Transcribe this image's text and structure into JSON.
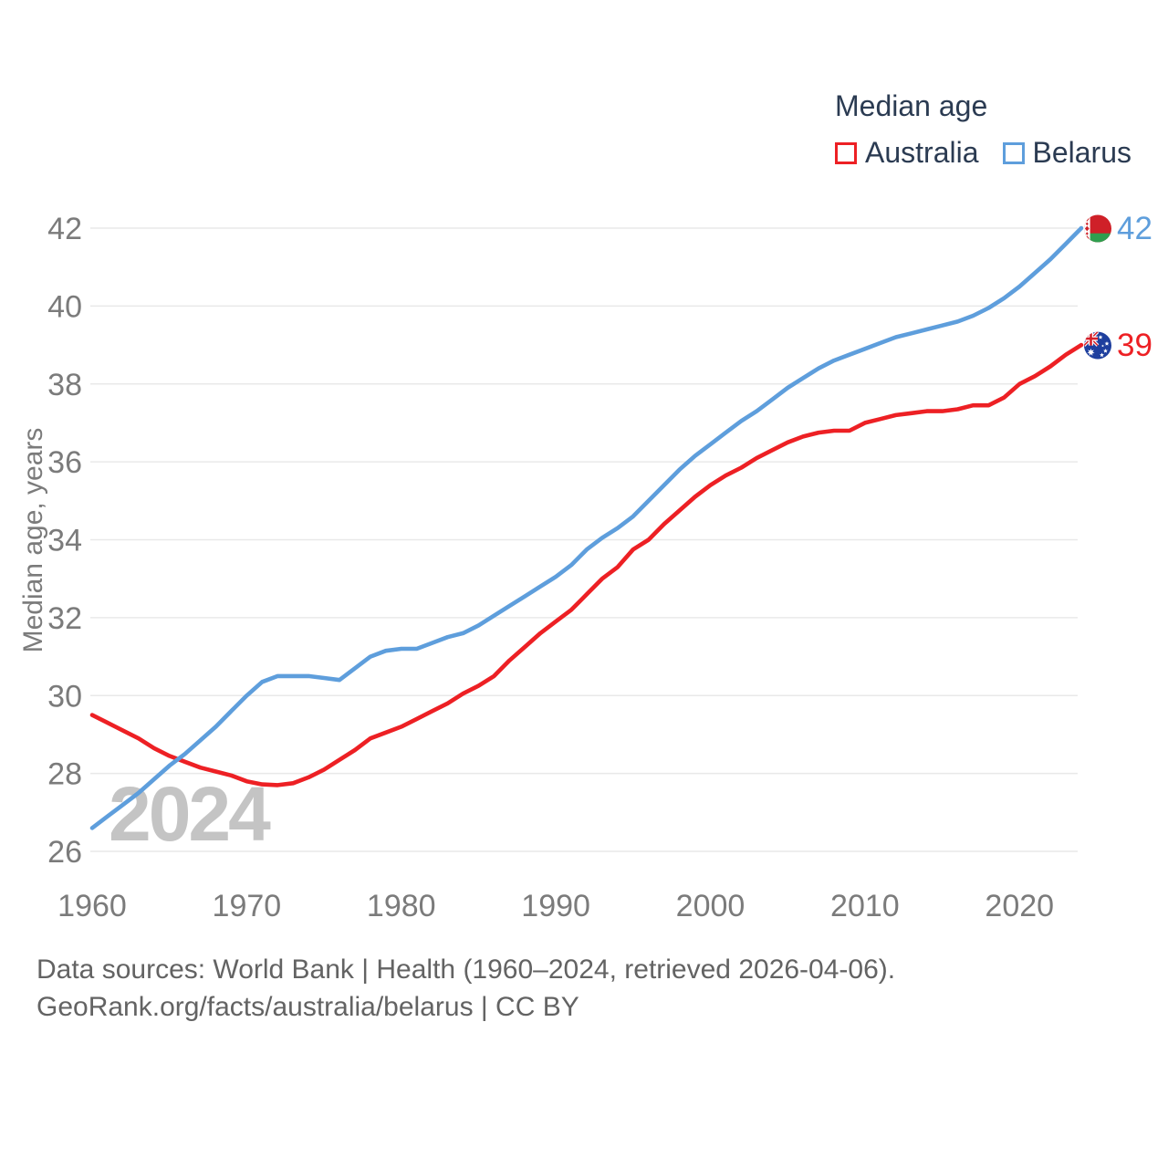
{
  "legend": {
    "title": "Median age",
    "items": [
      {
        "label": "Australia",
        "color": "#ed2024"
      },
      {
        "label": "Belarus",
        "color": "#5e9edc"
      }
    ]
  },
  "watermark": "2024",
  "footer": {
    "line1": "Data sources: World Bank | Health (1960–2024, retrieved 2026-04-06).",
    "line2": "GeoRank.org/facts/australia/belarus | CC BY"
  },
  "chart_data": {
    "type": "line",
    "title": "Median age",
    "xlabel": "",
    "ylabel": "Median age, years",
    "xlim": [
      1960,
      2024
    ],
    "ylim": [
      26,
      42
    ],
    "x_ticks": [
      1960,
      1970,
      1980,
      1990,
      2000,
      2010,
      2020
    ],
    "y_ticks": [
      26,
      28,
      30,
      32,
      34,
      36,
      38,
      40,
      42
    ],
    "grid": "horizontal",
    "grid_color": "#e9e9e9",
    "axis_text_color": "#7b7b7b",
    "legend_position": "top-right",
    "x": [
      1960,
      1961,
      1962,
      1963,
      1964,
      1965,
      1966,
      1967,
      1968,
      1969,
      1970,
      1971,
      1972,
      1973,
      1974,
      1975,
      1976,
      1977,
      1978,
      1979,
      1980,
      1981,
      1982,
      1983,
      1984,
      1985,
      1986,
      1987,
      1988,
      1989,
      1990,
      1991,
      1992,
      1993,
      1994,
      1995,
      1996,
      1997,
      1998,
      1999,
      2000,
      2001,
      2002,
      2003,
      2004,
      2005,
      2006,
      2007,
      2008,
      2009,
      2010,
      2011,
      2012,
      2013,
      2014,
      2015,
      2016,
      2017,
      2018,
      2019,
      2020,
      2021,
      2022,
      2023,
      2024
    ],
    "series": [
      {
        "name": "Australia",
        "color": "#ed2024",
        "end_label": "39",
        "end_flag": "australia-flag",
        "values": [
          29.5,
          29.3,
          29.1,
          28.9,
          28.65,
          28.45,
          28.3,
          28.15,
          28.05,
          27.95,
          27.8,
          27.72,
          27.7,
          27.75,
          27.9,
          28.1,
          28.35,
          28.6,
          28.9,
          29.05,
          29.2,
          29.4,
          29.6,
          29.8,
          30.05,
          30.25,
          30.5,
          30.9,
          31.25,
          31.6,
          31.9,
          32.2,
          32.6,
          33.0,
          33.3,
          33.75,
          34.0,
          34.4,
          34.75,
          35.1,
          35.4,
          35.65,
          35.85,
          36.1,
          36.3,
          36.5,
          36.65,
          36.75,
          36.8,
          36.8,
          37.0,
          37.1,
          37.2,
          37.25,
          37.3,
          37.3,
          37.35,
          37.45,
          37.45,
          37.65,
          38.0,
          38.2,
          38.45,
          38.75,
          39.0
        ]
      },
      {
        "name": "Belarus",
        "color": "#5e9edc",
        "end_label": "42",
        "end_flag": "belarus-flag",
        "values": [
          26.6,
          26.9,
          27.2,
          27.5,
          27.85,
          28.2,
          28.5,
          28.85,
          29.2,
          29.6,
          30.0,
          30.35,
          30.5,
          30.5,
          30.5,
          30.45,
          30.4,
          30.7,
          31.0,
          31.15,
          31.2,
          31.2,
          31.35,
          31.5,
          31.6,
          31.8,
          32.05,
          32.3,
          32.55,
          32.8,
          33.05,
          33.35,
          33.75,
          34.05,
          34.3,
          34.6,
          35.0,
          35.4,
          35.8,
          36.15,
          36.45,
          36.75,
          37.05,
          37.3,
          37.6,
          37.9,
          38.15,
          38.4,
          38.6,
          38.75,
          38.9,
          39.05,
          39.2,
          39.3,
          39.4,
          39.5,
          39.6,
          39.75,
          39.95,
          40.2,
          40.5,
          40.85,
          41.2,
          41.6,
          42.0
        ]
      }
    ]
  }
}
